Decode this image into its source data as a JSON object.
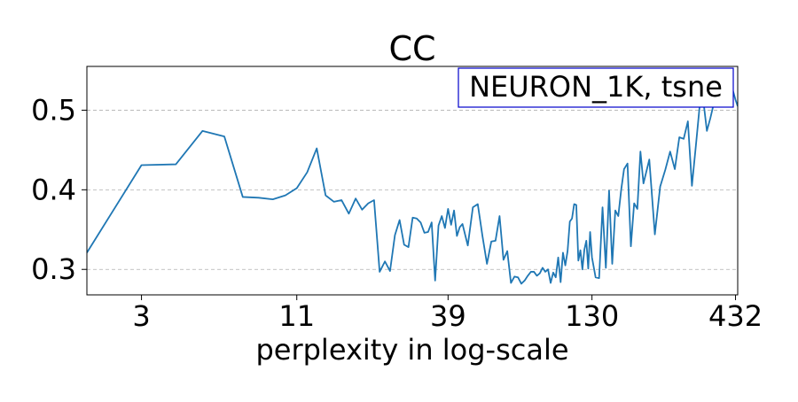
{
  "chart_data": {
    "type": "line",
    "title": "CC",
    "xlabel": "perplexity in log-scale",
    "ylabel": "",
    "x_scale": "log",
    "xlim": [
      1.9,
      440
    ],
    "ylim": [
      0.268,
      0.555
    ],
    "x_ticks": [
      3,
      11,
      39,
      130,
      432
    ],
    "x_tick_labels": [
      "3",
      "11",
      "39",
      "130",
      "432"
    ],
    "y_ticks": [
      0.3,
      0.4,
      0.5
    ],
    "y_tick_labels": [
      "0.3",
      "0.4",
      "0.5"
    ],
    "grid": "horizontal dashed",
    "legend_placement": "top-right",
    "annotation": "NEURON_1K, tsne",
    "line_color": "#1f77b4",
    "annotation_border_color": "#0000cc",
    "series": [
      {
        "x": [
          1.9,
          3,
          4,
          5,
          6,
          7,
          8,
          9,
          10,
          11,
          12,
          13,
          14,
          15,
          16,
          17,
          18,
          19,
          20,
          21,
          22,
          23,
          24,
          25,
          26,
          27,
          28,
          29,
          30,
          31,
          32,
          33,
          34,
          35,
          36,
          37,
          38,
          39,
          40,
          41,
          42,
          43,
          44,
          46,
          48,
          50,
          52,
          54,
          56,
          58,
          60,
          62,
          64,
          66,
          68,
          70,
          72,
          74,
          76,
          78,
          80,
          82,
          84,
          86,
          88,
          90,
          92,
          94,
          96,
          98,
          100,
          102,
          104,
          106,
          108,
          110,
          112,
          114,
          116,
          118,
          120,
          122,
          124,
          126,
          128,
          130,
          134,
          138,
          142,
          146,
          150,
          154,
          158,
          162,
          166,
          170,
          175,
          180,
          185,
          190,
          195,
          200,
          210,
          220,
          230,
          240,
          250,
          260,
          270,
          280,
          290,
          300,
          310,
          320,
          330,
          340,
          350,
          360,
          370,
          380,
          390,
          400,
          410,
          420,
          432,
          440
        ],
        "values": [
          0.321,
          0.431,
          0.432,
          0.474,
          0.467,
          0.391,
          0.39,
          0.388,
          0.393,
          0.402,
          0.422,
          0.452,
          0.393,
          0.385,
          0.387,
          0.37,
          0.389,
          0.375,
          0.383,
          0.387,
          0.297,
          0.31,
          0.298,
          0.343,
          0.362,
          0.331,
          0.328,
          0.365,
          0.364,
          0.359,
          0.346,
          0.347,
          0.359,
          0.286,
          0.355,
          0.367,
          0.352,
          0.376,
          0.356,
          0.374,
          0.342,
          0.353,
          0.357,
          0.33,
          0.378,
          0.382,
          0.342,
          0.307,
          0.335,
          0.336,
          0.367,
          0.312,
          0.323,
          0.283,
          0.291,
          0.29,
          0.282,
          0.286,
          0.292,
          0.297,
          0.297,
          0.292,
          0.295,
          0.302,
          0.297,
          0.3,
          0.283,
          0.296,
          0.29,
          0.315,
          0.284,
          0.321,
          0.305,
          0.323,
          0.36,
          0.364,
          0.382,
          0.381,
          0.311,
          0.324,
          0.3,
          0.325,
          0.336,
          0.301,
          0.347,
          0.315,
          0.29,
          0.289,
          0.378,
          0.302,
          0.399,
          0.307,
          0.374,
          0.367,
          0.4,
          0.426,
          0.433,
          0.329,
          0.383,
          0.376,
          0.448,
          0.408,
          0.438,
          0.344,
          0.404,
          0.425,
          0.448,
          0.426,
          0.466,
          0.464,
          0.486,
          0.405,
          0.455,
          0.505,
          0.512,
          0.474,
          0.49,
          0.508,
          0.514,
          0.526,
          0.54,
          0.548,
          0.538,
          0.528,
          0.513,
          0.505
        ]
      }
    ]
  }
}
